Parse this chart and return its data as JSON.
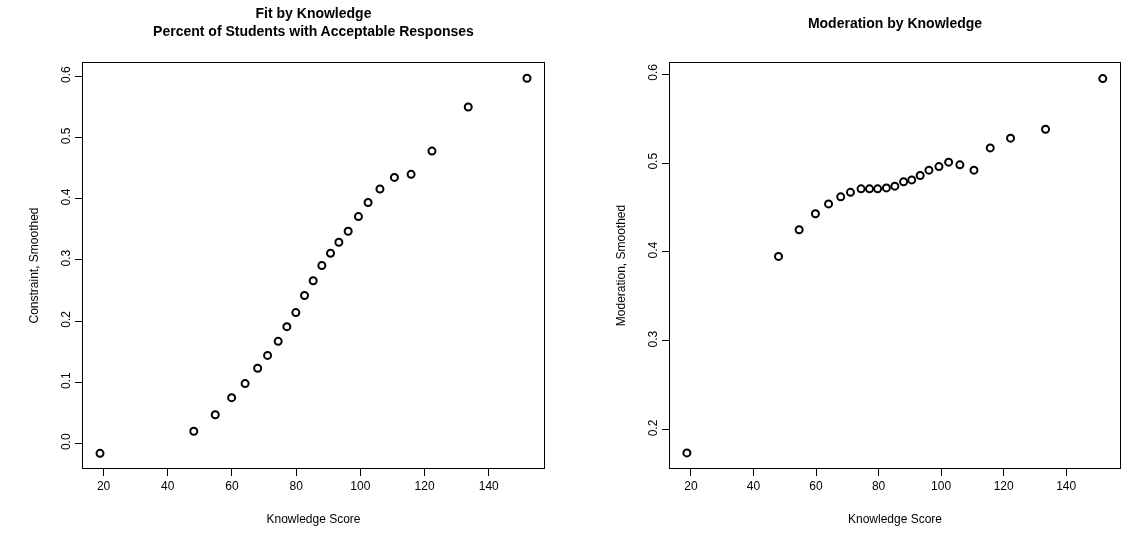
{
  "chart_data": [
    {
      "type": "scatter",
      "title": "Fit by Knowledge\nPercent of Students with Acceptable Responses",
      "xlabel": "Knowledge Score",
      "ylabel": "Constraint, Smoothed",
      "marker": "circle",
      "grid": false,
      "xlim": [
        13.6,
        157.2
      ],
      "xticks": [
        20,
        40,
        60,
        80,
        100,
        120,
        140
      ],
      "ylim": [
        -0.04,
        0.622
      ],
      "yticks": [
        {
          "value": 0,
          "label": "0.0"
        },
        0.1,
        0.2,
        0.3,
        0.4,
        0.5,
        0.6
      ],
      "series": [
        {
          "color": "#000000",
          "x": [
            18.9,
            48.1,
            54.8,
            59.9,
            64.1,
            68.0,
            71.1,
            74.4,
            77.1,
            79.9,
            82.6,
            85.3,
            88.0,
            90.7,
            93.3,
            96.2,
            99.4,
            102.4,
            106.1,
            110.6,
            115.8,
            122.3,
            133.6,
            151.9
          ],
          "values": [
            -0.016,
            0.02,
            0.047,
            0.075,
            0.098,
            0.123,
            0.144,
            0.167,
            0.191,
            0.214,
            0.242,
            0.266,
            0.291,
            0.311,
            0.329,
            0.347,
            0.371,
            0.394,
            0.416,
            0.435,
            0.44,
            0.478,
            0.55,
            0.597
          ]
        }
      ]
    },
    {
      "type": "scatter",
      "title": "Moderation by Knowledge",
      "xlabel": "Knowledge Score",
      "ylabel": "Moderation, Smoothed",
      "marker": "circle",
      "grid": false,
      "xlim": [
        13.3,
        157.2
      ],
      "xticks": [
        20,
        40,
        60,
        80,
        100,
        120,
        140
      ],
      "ylim": [
        0.157,
        0.6125
      ],
      "yticks": [
        0.2,
        0.3,
        0.4,
        0.5,
        0.6
      ],
      "series": [
        {
          "color": "#000000",
          "x": [
            18.7,
            48.0,
            54.6,
            59.8,
            64.0,
            67.9,
            71.0,
            74.4,
            77.1,
            79.7,
            82.5,
            85.2,
            88.0,
            90.6,
            93.3,
            96.1,
            99.3,
            102.4,
            106.0,
            110.5,
            115.7,
            122.2,
            133.4,
            151.7
          ],
          "values": [
            0.174,
            0.395,
            0.425,
            0.443,
            0.454,
            0.462,
            0.467,
            0.471,
            0.471,
            0.471,
            0.472,
            0.474,
            0.479,
            0.481,
            0.486,
            0.492,
            0.496,
            0.501,
            0.498,
            0.492,
            0.517,
            0.528,
            0.538,
            0.595
          ]
        }
      ]
    }
  ]
}
